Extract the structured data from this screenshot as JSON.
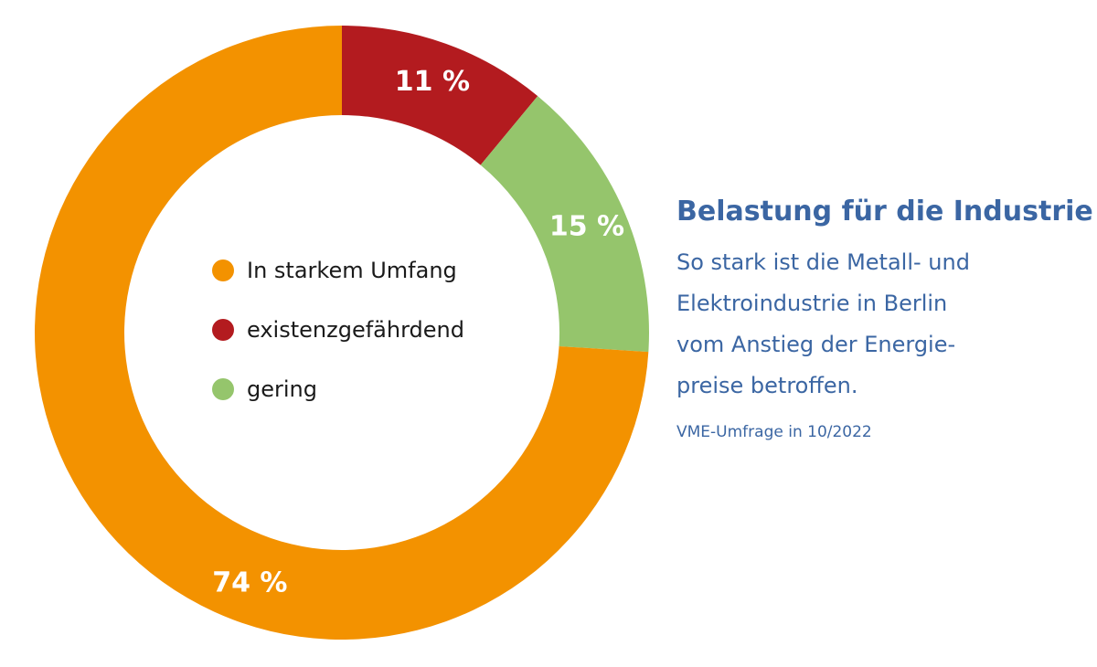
{
  "chart_data": {
    "type": "pie",
    "title": "Belastung für die Industrie",
    "subtitle_lines": [
      "So stark ist die Metall- und",
      "Elektroindustrie in Berlin",
      "vom Anstieg der Energie-",
      "preise betroffen."
    ],
    "source": "VME-Umfrage in 10/2022",
    "series": [
      {
        "name": "In starkem Umfang",
        "value": 74,
        "label": "74 %",
        "color": "#f39200"
      },
      {
        "name": "existenzgefährdend",
        "value": 11,
        "label": "11 %",
        "color": "#b31b1f"
      },
      {
        "name": "gering",
        "value": 15,
        "label": "15 %",
        "color": "#95c56c"
      }
    ],
    "drawing_order": [
      1,
      2,
      0
    ],
    "legend_position": "center"
  }
}
